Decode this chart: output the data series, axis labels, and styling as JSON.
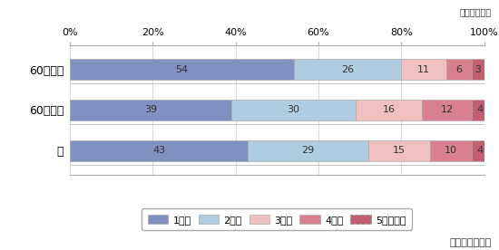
{
  "categories": [
    "60歳以上",
    "60歳未満",
    "計"
  ],
  "series_values": [
    [
      54,
      26,
      11,
      6,
      3
    ],
    [
      39,
      30,
      16,
      12,
      4
    ],
    [
      43,
      29,
      15,
      10,
      4
    ]
  ],
  "colors": [
    "#8090c0",
    "#b0cce0",
    "#f0c0c0",
    "#d88090",
    "#c06070"
  ],
  "legend_labels": [
    "1箇所",
    "2箇所",
    "3箇所",
    "4箇所",
    "5箇所以上"
  ],
  "xlim": [
    0,
    100
  ],
  "xticks": [
    0,
    20,
    40,
    60,
    80,
    100
  ],
  "xticklabels": [
    "0%",
    "20%",
    "40%",
    "60%",
    "80%",
    "100%"
  ],
  "note": "資料：回遊調査",
  "unit_label": "（単位：％）",
  "bar_edgecolor": "#aaaaaa",
  "bar_linewidth": 0.5,
  "last_bar_linestyle": "dashed"
}
